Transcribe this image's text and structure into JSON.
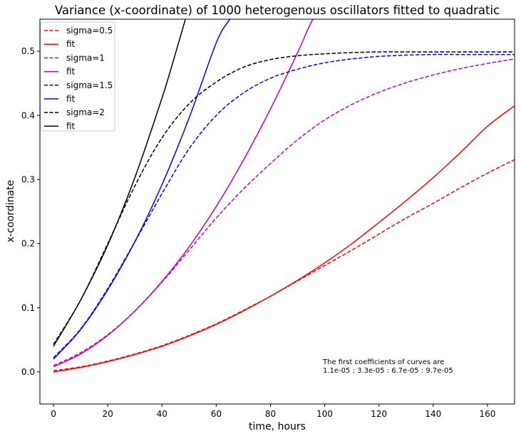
{
  "chart_data": {
    "type": "line",
    "title": "Variance (x-coordinate) of 1000 heterogenous oscillators fitted to quadratic",
    "xlabel": "time, hours",
    "ylabel": "x-coordinate",
    "xlim": [
      -5,
      170
    ],
    "ylim": [
      -0.05,
      0.55
    ],
    "xticks": [
      0,
      20,
      40,
      60,
      80,
      100,
      120,
      140,
      160
    ],
    "yticks": [
      0.0,
      0.1,
      0.2,
      0.3,
      0.4,
      0.5
    ],
    "xtick_labels": [
      "0",
      "20",
      "40",
      "60",
      "80",
      "100",
      "120",
      "140",
      "160"
    ],
    "ytick_labels": [
      "0.0",
      "0.1",
      "0.2",
      "0.3",
      "0.4",
      "0.5"
    ],
    "grid": false,
    "legend_position": "upper-left",
    "annotation": {
      "line1": "The first coefficients of curves are",
      "line2": "1.1e-05 : 3.3e-05 : 6.7e-05 : 9.7e-05"
    },
    "series": [
      {
        "name": "sigma=0.5",
        "color": "#ff0000",
        "style": "dashed",
        "x": [
          0,
          10,
          20,
          30,
          40,
          50,
          60,
          70,
          80,
          90,
          100,
          110,
          120,
          130,
          140,
          150,
          160,
          170
        ],
        "y": [
          0.002,
          0.008,
          0.017,
          0.028,
          0.041,
          0.057,
          0.075,
          0.096,
          0.118,
          0.142,
          0.166,
          0.19,
          0.215,
          0.24,
          0.263,
          0.287,
          0.31,
          0.331
        ]
      },
      {
        "name": "fit",
        "color": "#ff0000",
        "style": "solid",
        "x": [
          0,
          10,
          20,
          30,
          40,
          50,
          60,
          70,
          80,
          90,
          100,
          110,
          120,
          130,
          140,
          150,
          160,
          170
        ],
        "y": [
          0.0,
          0.007,
          0.016,
          0.027,
          0.04,
          0.056,
          0.074,
          0.095,
          0.118,
          0.143,
          0.17,
          0.2,
          0.233,
          0.267,
          0.303,
          0.342,
          0.383,
          0.415
        ]
      },
      {
        "name": "sigma=1",
        "color": "#bf00bf",
        "style": "dashed",
        "x": [
          0,
          10,
          20,
          30,
          40,
          50,
          60,
          70,
          80,
          90,
          100,
          110,
          120,
          130,
          140,
          150,
          160,
          170
        ],
        "y": [
          0.01,
          0.03,
          0.058,
          0.095,
          0.14,
          0.19,
          0.24,
          0.285,
          0.325,
          0.362,
          0.393,
          0.417,
          0.436,
          0.451,
          0.463,
          0.473,
          0.481,
          0.488
        ]
      },
      {
        "name": "fit",
        "color": "#bf00bf",
        "style": "solid",
        "x": [
          0,
          10,
          20,
          30,
          40,
          50,
          60,
          70,
          80,
          90,
          95,
          100
        ],
        "y": [
          0.008,
          0.028,
          0.057,
          0.095,
          0.141,
          0.195,
          0.258,
          0.33,
          0.41,
          0.498,
          0.545,
          0.58
        ]
      },
      {
        "name": "sigma=1.5",
        "color": "#0000ff",
        "style": "dashed",
        "x": [
          0,
          10,
          20,
          30,
          40,
          50,
          60,
          70,
          80,
          90,
          100,
          110,
          120,
          130,
          140,
          150,
          160,
          170
        ],
        "y": [
          0.022,
          0.067,
          0.13,
          0.203,
          0.278,
          0.348,
          0.4,
          0.435,
          0.458,
          0.472,
          0.482,
          0.488,
          0.492,
          0.494,
          0.495,
          0.495,
          0.495,
          0.495
        ]
      },
      {
        "name": "fit",
        "color": "#0000ff",
        "style": "solid",
        "x": [
          0,
          10,
          20,
          30,
          40,
          50,
          60,
          65,
          70
        ],
        "y": [
          0.02,
          0.066,
          0.128,
          0.203,
          0.292,
          0.396,
          0.513,
          0.55,
          0.58
        ]
      },
      {
        "name": "sigma=2",
        "color": "#000000",
        "style": "dashed",
        "x": [
          0,
          10,
          20,
          30,
          40,
          50,
          60,
          70,
          80,
          90,
          100,
          110,
          120,
          130,
          140,
          150,
          160,
          170
        ],
        "y": [
          0.043,
          0.112,
          0.2,
          0.29,
          0.365,
          0.418,
          0.452,
          0.475,
          0.487,
          0.493,
          0.496,
          0.498,
          0.499,
          0.499,
          0.499,
          0.499,
          0.499,
          0.499
        ]
      },
      {
        "name": "fit",
        "color": "#000000",
        "style": "solid",
        "x": [
          0,
          10,
          20,
          30,
          40,
          45,
          50
        ],
        "y": [
          0.04,
          0.112,
          0.198,
          0.303,
          0.427,
          0.497,
          0.57
        ]
      }
    ]
  }
}
